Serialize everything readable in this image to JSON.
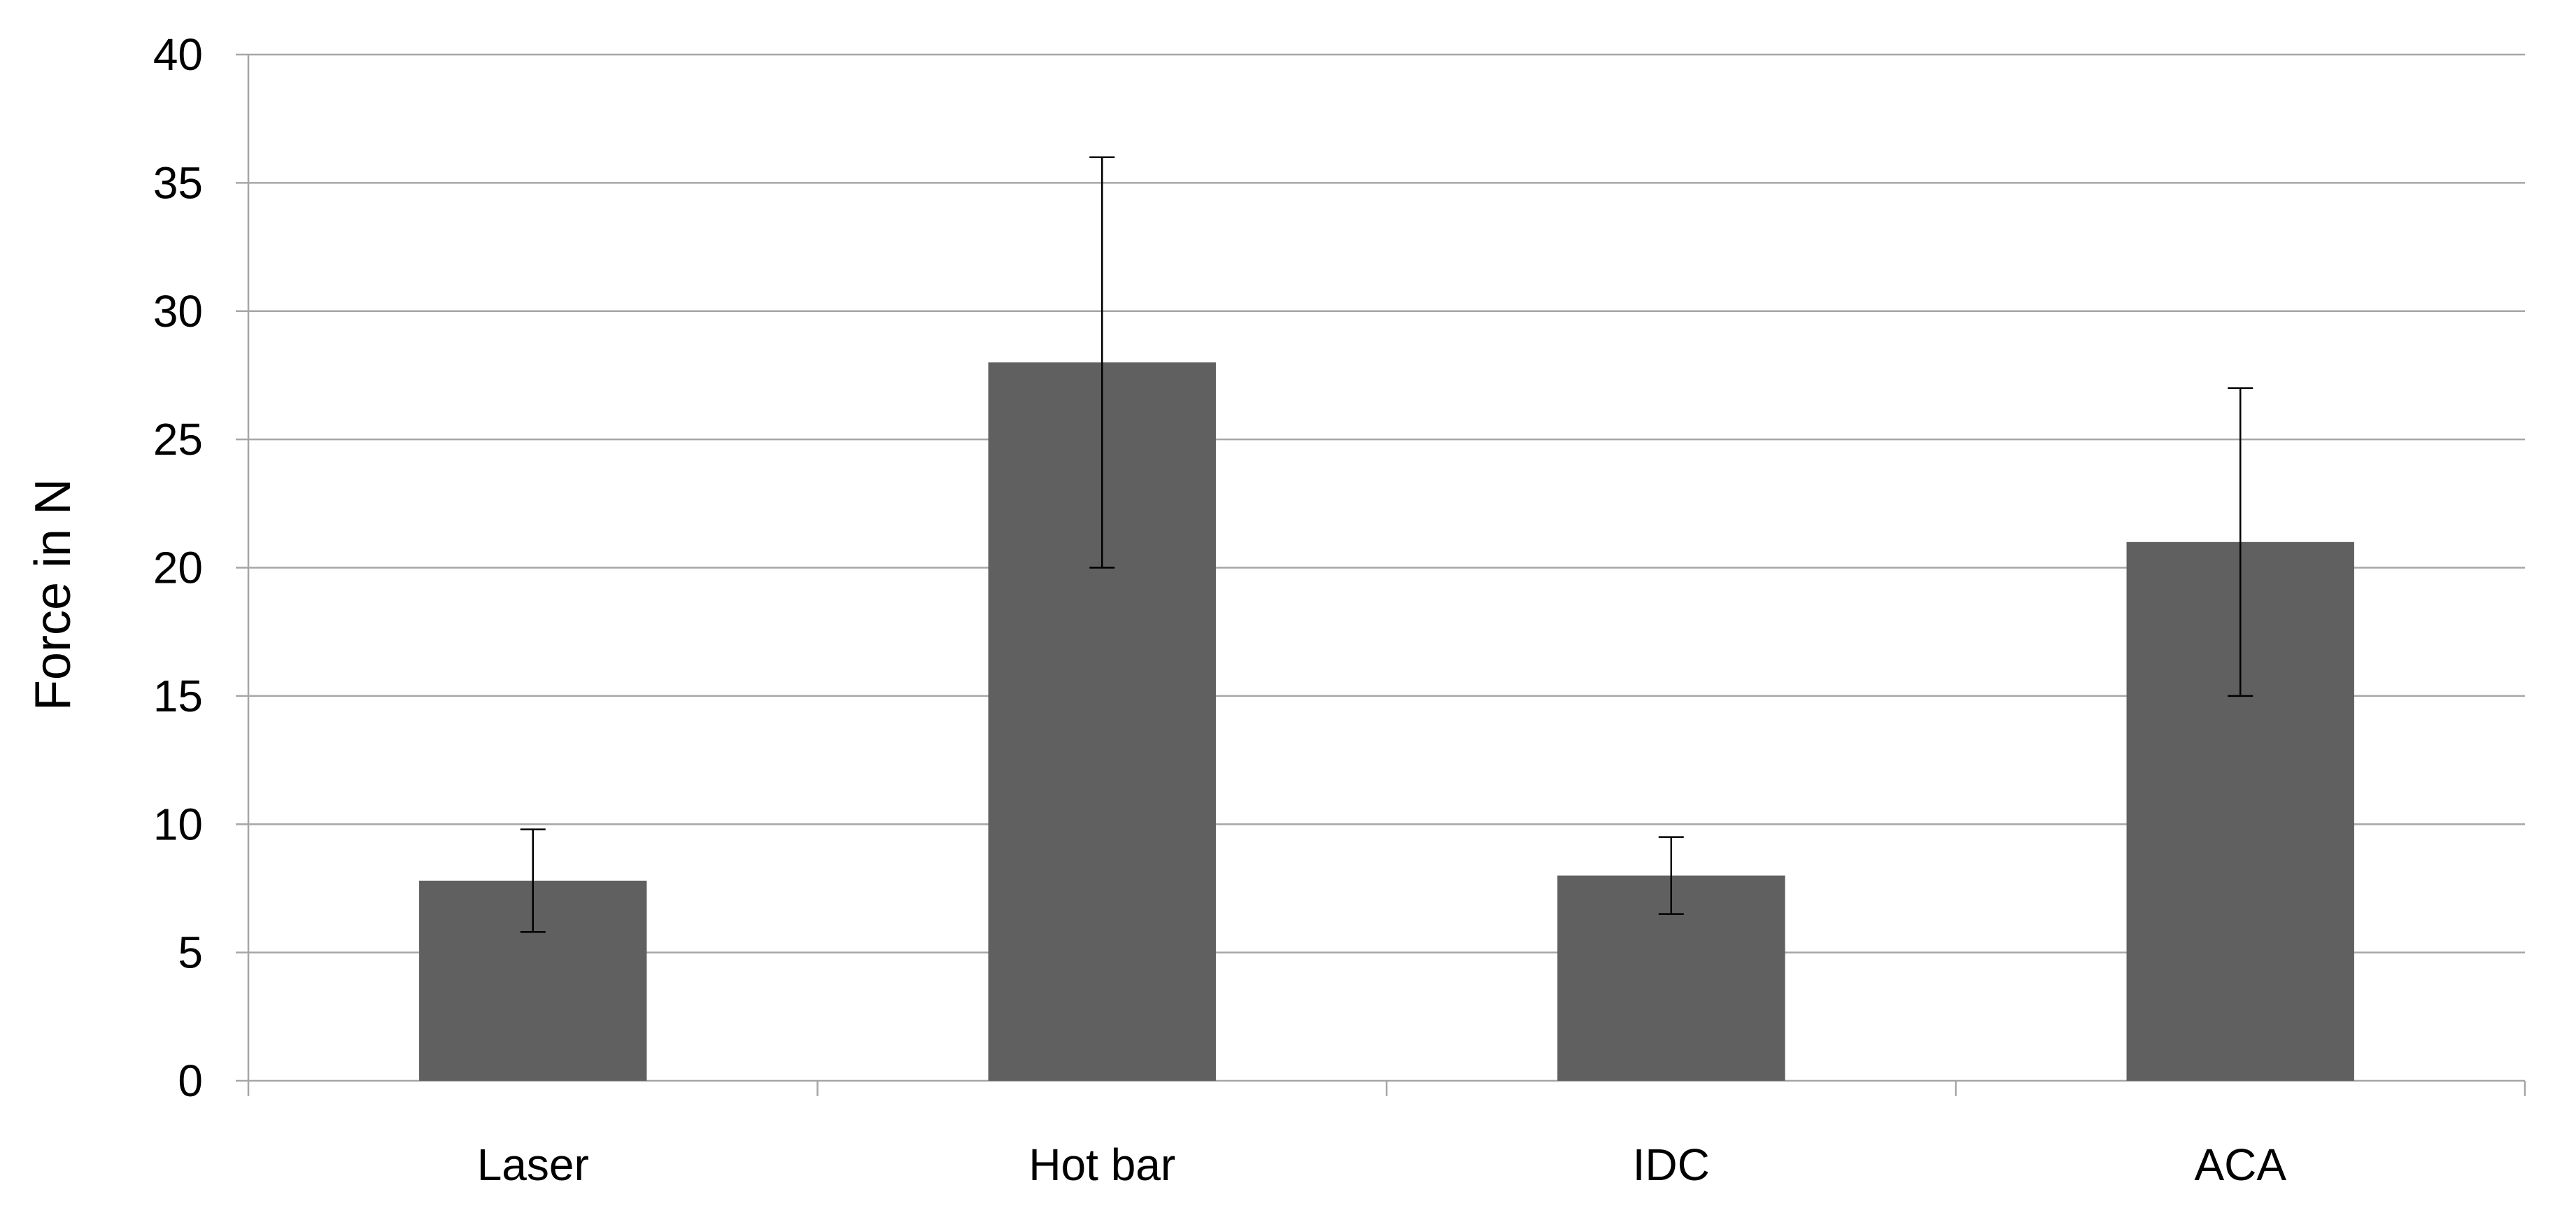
{
  "chart_data": {
    "type": "bar",
    "categories": [
      "Laser",
      "Hot bar",
      "IDC",
      "ACA"
    ],
    "series": [
      {
        "values": [
          7.8,
          28,
          8,
          21
        ],
        "error_low": [
          5.8,
          20,
          6.5,
          15
        ],
        "error_high": [
          9.8,
          36,
          9.5,
          27
        ]
      }
    ],
    "xlabel": "",
    "ylabel": "Force in N",
    "ylim": [
      0,
      40
    ],
    "yticks": [
      0,
      5,
      10,
      15,
      20,
      25,
      30,
      35,
      40
    ],
    "grid": true,
    "legend": "none",
    "colors": {
      "bar": "#606060",
      "grid": "#a6a6a6",
      "axis": "#a6a6a6",
      "error_bar": "#000000"
    }
  }
}
